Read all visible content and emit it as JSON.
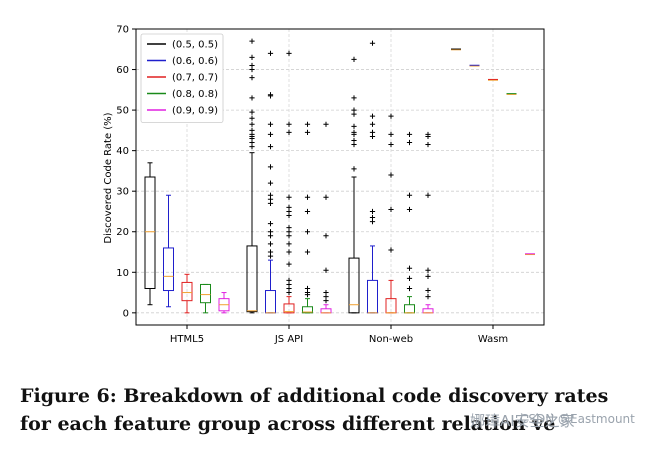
{
  "chart_data": {
    "type": "box",
    "title": "",
    "xlabel": "",
    "ylabel": "Discovered Code Rate (%)",
    "ylim": [
      -3,
      70
    ],
    "yticks": [
      0,
      10,
      20,
      30,
      40,
      50,
      60,
      70
    ],
    "grid": true,
    "legend_position": "top-left",
    "categories": [
      "HTML5",
      "JS API",
      "Non-web",
      "Wasm"
    ],
    "series": [
      {
        "name": "(0.5, 0.5)",
        "color": "#000000"
      },
      {
        "name": "(0.6, 0.6)",
        "color": "#1f1fcc"
      },
      {
        "name": "(0.7, 0.7)",
        "color": "#e02020"
      },
      {
        "name": "(0.8, 0.8)",
        "color": "#1a8a1a"
      },
      {
        "name": "(0.9, 0.9)",
        "color": "#e020e0"
      }
    ],
    "boxes": [
      {
        "category": "HTML5",
        "series": "(0.5, 0.5)",
        "min": 2,
        "q1": 6,
        "median": 20,
        "q3": 33.5,
        "max": 37,
        "fliers": []
      },
      {
        "category": "HTML5",
        "series": "(0.6, 0.6)",
        "min": 1.5,
        "q1": 5.5,
        "median": 9,
        "q3": 16,
        "max": 29,
        "fliers": []
      },
      {
        "category": "HTML5",
        "series": "(0.7, 0.7)",
        "min": 0,
        "q1": 3,
        "median": 5,
        "q3": 7.5,
        "max": 9.5,
        "fliers": []
      },
      {
        "category": "HTML5",
        "series": "(0.8, 0.8)",
        "min": 0,
        "q1": 2.5,
        "median": 4.5,
        "q3": 7,
        "max": 7,
        "fliers": []
      },
      {
        "category": "HTML5",
        "series": "(0.9, 0.9)",
        "min": 0,
        "q1": 0.5,
        "median": 2,
        "q3": 3.5,
        "max": 5,
        "fliers": []
      },
      {
        "category": "JS API",
        "series": "(0.5, 0.5)",
        "min": 0,
        "q1": 0.3,
        "median": 0.5,
        "q3": 16.5,
        "max": 39.5,
        "fliers": [
          41,
          42,
          43,
          43.5,
          44,
          45,
          46.5,
          48,
          49.5,
          53,
          58,
          60,
          61,
          63,
          67
        ]
      },
      {
        "category": "JS API",
        "series": "(0.6, 0.6)",
        "min": 0,
        "q1": 0,
        "median": 0,
        "q3": 5.5,
        "max": 13,
        "fliers": [
          14,
          15,
          17,
          19,
          20,
          22,
          27,
          28,
          29,
          32,
          36,
          41,
          44,
          46.5,
          53.5,
          53.8,
          64
        ]
      },
      {
        "category": "JS API",
        "series": "(0.7, 0.7)",
        "min": 0,
        "q1": 0,
        "median": 0.3,
        "q3": 2.2,
        "max": 4,
        "fliers": [
          5,
          6,
          7,
          8,
          12,
          15,
          17,
          19,
          20,
          21,
          24,
          25,
          26,
          28.5,
          44.5,
          46.5,
          64
        ]
      },
      {
        "category": "JS API",
        "series": "(0.8, 0.8)",
        "min": 0,
        "q1": 0,
        "median": 0.2,
        "q3": 1.5,
        "max": 3.5,
        "fliers": [
          4.5,
          5,
          6,
          15,
          20,
          25,
          28.5,
          44.5,
          46.5
        ]
      },
      {
        "category": "JS API",
        "series": "(0.9, 0.9)",
        "min": 0,
        "q1": 0,
        "median": 0,
        "q3": 1,
        "max": 2,
        "fliers": [
          3,
          4,
          5,
          10.5,
          19,
          28.5,
          46.5
        ]
      },
      {
        "category": "Non-web",
        "series": "(0.5, 0.5)",
        "min": 0,
        "q1": 0,
        "median": 2,
        "q3": 13.5,
        "max": 33.5,
        "fliers": [
          35.5,
          41.5,
          42.5,
          44,
          44.5,
          46,
          49,
          50,
          53,
          62.5
        ]
      },
      {
        "category": "Non-web",
        "series": "(0.6, 0.6)",
        "min": 0,
        "q1": 0,
        "median": 0,
        "q3": 8,
        "max": 16.5,
        "fliers": [
          22.5,
          23.5,
          25,
          43.5,
          44.5,
          46.5,
          48.5,
          66.5
        ]
      },
      {
        "category": "Non-web",
        "series": "(0.7, 0.7)",
        "min": 0,
        "q1": 0,
        "median": 0,
        "q3": 3.5,
        "max": 8,
        "fliers": [
          15.5,
          25.5,
          34,
          41.5,
          44,
          48.5
        ]
      },
      {
        "category": "Non-web",
        "series": "(0.8, 0.8)",
        "min": 0,
        "q1": 0,
        "median": 0,
        "q3": 2,
        "max": 4,
        "fliers": [
          6,
          8.5,
          11,
          25.5,
          29,
          42,
          44
        ]
      },
      {
        "category": "Non-web",
        "series": "(0.9, 0.9)",
        "min": 0,
        "q1": 0,
        "median": 0,
        "q3": 1,
        "max": 2,
        "fliers": [
          4,
          5.5,
          9,
          10.5,
          29,
          41.5,
          43.5,
          44
        ]
      },
      {
        "category": "Wasm",
        "series": "(0.5, 0.5)",
        "min": 65,
        "q1": 65,
        "median": 65,
        "q3": 65,
        "max": 65,
        "fliers": []
      },
      {
        "category": "Wasm",
        "series": "(0.6, 0.6)",
        "min": 61,
        "q1": 61,
        "median": 61,
        "q3": 61,
        "max": 61,
        "fliers": []
      },
      {
        "category": "Wasm",
        "series": "(0.7, 0.7)",
        "min": 57.5,
        "q1": 57.5,
        "median": 57.5,
        "q3": 57.5,
        "max": 57.5,
        "fliers": []
      },
      {
        "category": "Wasm",
        "series": "(0.8, 0.8)",
        "min": 54,
        "q1": 54,
        "median": 54,
        "q3": 54,
        "max": 54,
        "fliers": []
      },
      {
        "category": "Wasm",
        "series": "(0.9, 0.9)",
        "min": 14.5,
        "q1": 14.5,
        "median": 14.5,
        "q3": 14.5,
        "max": 14.5,
        "fliers": []
      }
    ],
    "median_color": "#f0a030"
  },
  "caption": "Figure 6: Breakdown of additional code discovery rates for each feature group across different relation ve",
  "watermark": {
    "wechat": "娜璋AI安全之家",
    "csdn": "CSDN @Eastmount"
  }
}
